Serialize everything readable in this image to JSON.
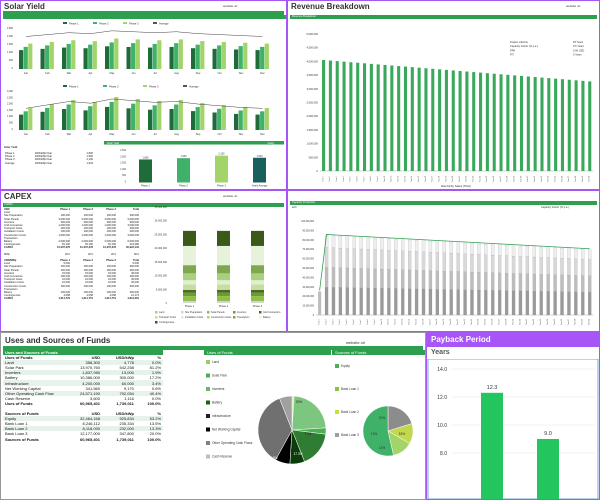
{
  "solar": {
    "title": "Solar Yield",
    "website": "website url",
    "months": [
      "Jan",
      "Feb",
      "Mar",
      "Apr",
      "May",
      "Jun",
      "Jul",
      "Aug",
      "Sep",
      "Oct",
      "Nov",
      "Dec"
    ],
    "legend1": [
      "Phase 1",
      "Phase 2",
      "Phase 3",
      "Average"
    ],
    "legend2": [
      "Phase 1",
      "Phase 2",
      "Phase 3",
      "Average"
    ],
    "summary_title": "Solar Yield",
    "summary_rows": [
      {
        "label": "Phase 1",
        "mid": "kWh/kWp/Year",
        "val": "1,800"
      },
      {
        "label": "Phase 2",
        "mid": "kWh/kWp/Year",
        "val": "1,900"
      },
      {
        "label": "Phase 3",
        "mid": "kWh/kWp/Year",
        "val": "2,100"
      },
      {
        "label": "Average",
        "mid": "kWh/kWp/Year",
        "val": "1,933"
      }
    ],
    "mini_title_left": "Solar Yield",
    "mini_title_right": "Yearly",
    "mini_cats": [
      "Phase 1",
      "Phase 2",
      "Phase 3",
      "Yearly Average"
    ],
    "mini_labels": [
      "1,800",
      "1,900",
      "2,100",
      "1,933"
    ]
  },
  "revenue": {
    "title": "Revenue Breakdown",
    "website": "website url",
    "subtitle": "Revenue Breakdown",
    "legend": [
      {
        "label": "Project Lifetime",
        "val": "25 Years"
      },
      {
        "label": "Capacity Factor (% p.a.)",
        "val": "0.5 Years"
      },
      {
        "label": "PPA",
        "val": "0.06 USD"
      },
      {
        "label": "FIT",
        "val": "0 Years"
      }
    ],
    "yticks": [
      "5,000,000",
      "4,500,000",
      "4,000,000",
      "3,500,000",
      "3,000,000",
      "2,500,000",
      "2,000,000",
      "1,500,000",
      "1,000,000",
      "500,000",
      "0"
    ],
    "xlabel": "Electricity Sales (PAA)"
  },
  "capex": {
    "title": "CAPEX",
    "website": "website url",
    "bar_label": "CAPEX",
    "head": [
      "Phase 1",
      "Phase 2",
      "Phase 3",
      "Total"
    ],
    "rows1": [
      {
        "l": "Land",
        "v": [
          "-",
          "-",
          "-",
          "-"
        ]
      },
      {
        "l": "Site Preparation",
        "v": [
          "100,000",
          "100,000",
          "100,000",
          "300,000"
        ]
      },
      {
        "l": "Solar Panels",
        "v": [
          "3,000,000",
          "3,000,000",
          "3,000,000",
          "9,000,000"
        ]
      },
      {
        "l": "Inverters",
        "v": [
          "300,000",
          "300,000",
          "300,000",
          "900,000"
        ]
      },
      {
        "l": "Grid Connection",
        "v": [
          "1,000,000",
          "1,000,000",
          "1,000,000",
          "3,000,000"
        ]
      },
      {
        "l": "Transport Costs",
        "v": [
          "100,000",
          "100,000",
          "100,000",
          "300,000"
        ]
      },
      {
        "l": "Installation Costs",
        "v": [
          "100,000",
          "100,000",
          "100,000",
          "300,000"
        ]
      },
      {
        "l": "Construction Costs",
        "v": [
          "1,000,000",
          "1,000,000",
          "1,000,000",
          "3,000,000"
        ]
      },
      {
        "l": "Transaction",
        "v": [
          "-",
          "-",
          "-",
          "-"
        ]
      },
      {
        "l": "Battery",
        "v": [
          "2,000,000",
          "2,000,000",
          "2,000,000",
          "6,000,000"
        ]
      },
      {
        "l": "Contingencies",
        "v": [
          "81,160",
          "81,160",
          "81,160",
          "243,480"
        ]
      }
    ],
    "total1": {
      "l": "CAPEX",
      "v": [
        "10,307,378",
        "10,307,378",
        "10,307,378",
        "30,922,134"
      ]
    },
    "mw_row": {
      "l": "MWp",
      "v": [
        "20.0",
        "20.0",
        "20.0",
        "60.0"
      ]
    },
    "rows2": [
      {
        "l": "Land",
        "v": [
          "5,000",
          "-",
          "-",
          "5,000"
        ]
      },
      {
        "l": "Site Preparation",
        "v": [
          "100,000",
          "100,000",
          "100,000",
          "300,000"
        ]
      },
      {
        "l": "Solar Panels",
        "v": [
          "150,000",
          "150,000",
          "150,000",
          "450,000"
        ]
      },
      {
        "l": "Inverters",
        "v": [
          "15,000",
          "15,000",
          "15,000",
          "45,000"
        ]
      },
      {
        "l": "Grid Connection",
        "v": [
          "100,000",
          "100,000",
          "100,000",
          "300,000"
        ]
      },
      {
        "l": "Transport Costs",
        "v": [
          "10,000",
          "10,000",
          "10,000",
          "30,000"
        ]
      },
      {
        "l": "Installation Costs",
        "v": [
          "10,000",
          "10,000",
          "10,000",
          "30,000"
        ]
      },
      {
        "l": "Construction Costs",
        "v": [
          "100,000",
          "100,000",
          "100,000",
          "300,000"
        ]
      },
      {
        "l": "Transaction",
        "v": [
          "-",
          "-",
          "-",
          "-"
        ]
      },
      {
        "l": "Battery",
        "v": [
          "100,000",
          "100,000",
          "100,000",
          "300,000"
        ]
      },
      {
        "l": "Contingencies",
        "v": [
          "4,058",
          "4,058",
          "4,058",
          "12,174"
        ]
      }
    ],
    "total2": {
      "l": "CAPEX",
      "v": [
        "1,614,779",
        "1,614,751",
        "1,614,751",
        "4,844,281"
      ]
    },
    "yticks": [
      "35,000,000",
      "30,000,000",
      "25,000,000",
      "20,000,000",
      "15,000,000",
      "10,000,000",
      "5,000,000",
      "0"
    ],
    "cats": [
      "Phase 1",
      "Phase 2",
      "Phase 3"
    ],
    "legend": [
      "Land",
      "Site Preparation",
      "Solar Panels",
      "Inverters",
      "Grid Connection",
      "Transport Costs",
      "Installation Costs",
      "Construction Costs",
      "Transaction",
      "Battery",
      "Contingencies"
    ]
  },
  "capacity": {
    "subtitle": "Capacity Production",
    "unit": "Capacity Factor (% p.a.)",
    "left_label": "kwh"
  },
  "uses": {
    "title": "Uses and Sources of Funds",
    "website": "website url",
    "table_title": "Uses and Sources of Funds",
    "use_head": [
      "Uses of Funds",
      "USD",
      "USD/kWp",
      "%"
    ],
    "use_rows": [
      {
        "l": "Land",
        "v": [
          "358,300",
          "4,778",
          "0.0%"
        ]
      },
      {
        "l": "Solar Park",
        "v": [
          "13,970,760",
          "542,258",
          "81.2%"
        ]
      },
      {
        "l": "Inverters",
        "v": [
          "1,837,950",
          "13,000",
          "1.9%"
        ]
      },
      {
        "l": "Battery",
        "v": [
          "10,386,000",
          "300,000",
          "17.2%"
        ]
      },
      {
        "l": "Infrastructure",
        "v": [
          "4,200,000",
          "60,000",
          "3.4%"
        ]
      },
      {
        "l": "Net Working Capital",
        "v": [
          "341,560",
          "9,170",
          "0.6%"
        ]
      },
      {
        "l": "Other Operating Cash Flow",
        "v": [
          "24,571,190",
          "792,054",
          "40.4%"
        ]
      },
      {
        "l": "Cash Reserve",
        "v": [
          "3,600",
          "1,116",
          "0.0%"
        ]
      }
    ],
    "use_total": {
      "l": "Uses of Funds",
      "v": [
        "60,965,401",
        "1,739,011",
        "100.0%"
      ]
    },
    "src_head": [
      "Sources of Funds",
      "USD",
      "USD/kWp",
      "%"
    ],
    "src_rows": [
      {
        "l": "Equity",
        "v": [
          "32,464,168",
          "925,834",
          "53.2%"
        ]
      },
      {
        "l": "Bank Loan 1",
        "v": [
          "8,246,112",
          "235,334",
          "13.5%"
        ]
      },
      {
        "l": "Bank Loan 2",
        "v": [
          "8,118,000",
          "232,000",
          "13.3%"
        ]
      },
      {
        "l": "Bank Loan 3",
        "v": [
          "12,177,000",
          "347,800",
          "20.0%"
        ]
      }
    ],
    "src_total": {
      "l": "Sources of Funds",
      "v": [
        "60,965,401",
        "1,739,011",
        "100.0%"
      ]
    },
    "pie1_title": "Uses of Funds",
    "pie1_legend": [
      "Land",
      "Solar Park",
      "Inverters",
      "Battery",
      "Infrastructure",
      "Net Working Capital",
      "Other Operating Cash Flows",
      "Cash Reserve"
    ],
    "pie1_labels": [
      "6.9%",
      "17.3%",
      "7.3%",
      "30%"
    ],
    "pie2_title": "Sources of Funds",
    "pie2_legend": [
      "Equity",
      "Bank Loan 1",
      "Bank Loan 2",
      "Bank Loan 3"
    ],
    "pie2_labels": [
      "20%",
      "13%",
      "13%",
      "53%"
    ],
    "colors": {
      "accent": "#2e9e4f",
      "purple": "#a855f7"
    }
  },
  "payback": {
    "title": "Payback Period",
    "subtitle": "Years",
    "yticks": [
      "14.0",
      "12.0",
      "10.0",
      "8.0"
    ],
    "values": [
      12.3,
      9.0
    ],
    "labels": [
      "12.3",
      "9.0"
    ]
  }
}
